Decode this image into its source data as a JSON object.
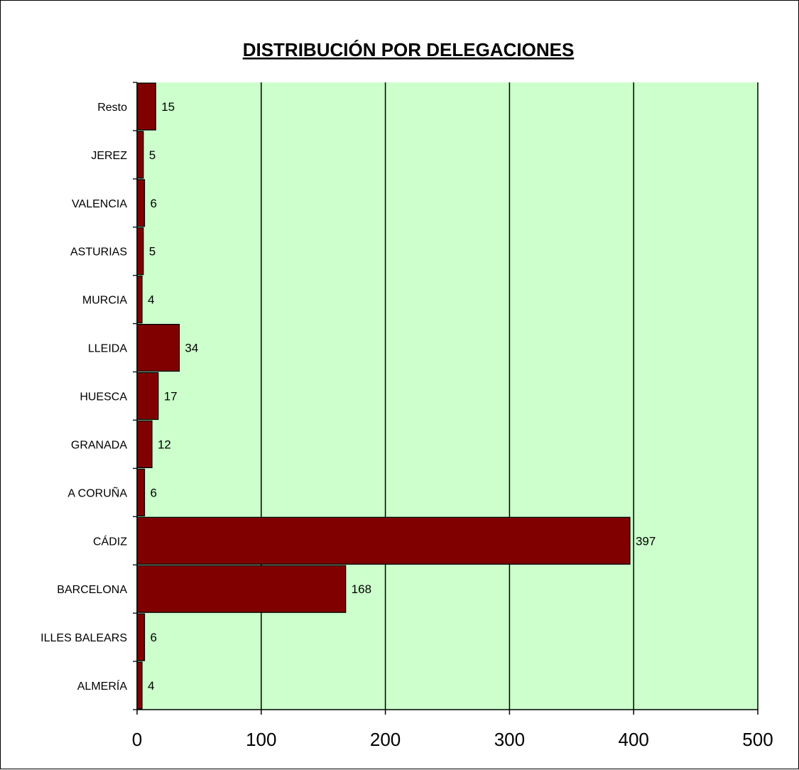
{
  "chart_data": {
    "type": "bar",
    "orientation": "horizontal",
    "title": "DISTRIBUCIÓN POR DELEGACIONES",
    "categories": [
      "Resto",
      "JEREZ",
      "VALENCIA",
      "ASTURIAS",
      "MURCIA",
      "LLEIDA",
      "HUESCA",
      "GRANADA",
      "A CORUÑA",
      "CÁDIZ",
      "BARCELONA",
      "ILLES BALEARS",
      "ALMERÍA"
    ],
    "values": [
      15,
      5,
      6,
      5,
      4,
      34,
      17,
      12,
      6,
      397,
      168,
      6,
      4
    ],
    "data_labels": [
      "15",
      "5",
      "6",
      "5",
      "4",
      "34",
      "17",
      "12",
      "6",
      "397",
      "168",
      "6",
      "4"
    ],
    "xlim": [
      0,
      500
    ],
    "x_ticks": [
      0,
      100,
      200,
      300,
      400,
      500
    ],
    "x_tick_labels": [
      "0",
      "100",
      "200",
      "300",
      "400",
      "500"
    ],
    "grid": "vertical",
    "legend": "none",
    "colors": {
      "plot_background": "#ccffcc",
      "bar_fill": "#800000",
      "bar_stroke": "#000000",
      "gridline": "#000000"
    }
  }
}
